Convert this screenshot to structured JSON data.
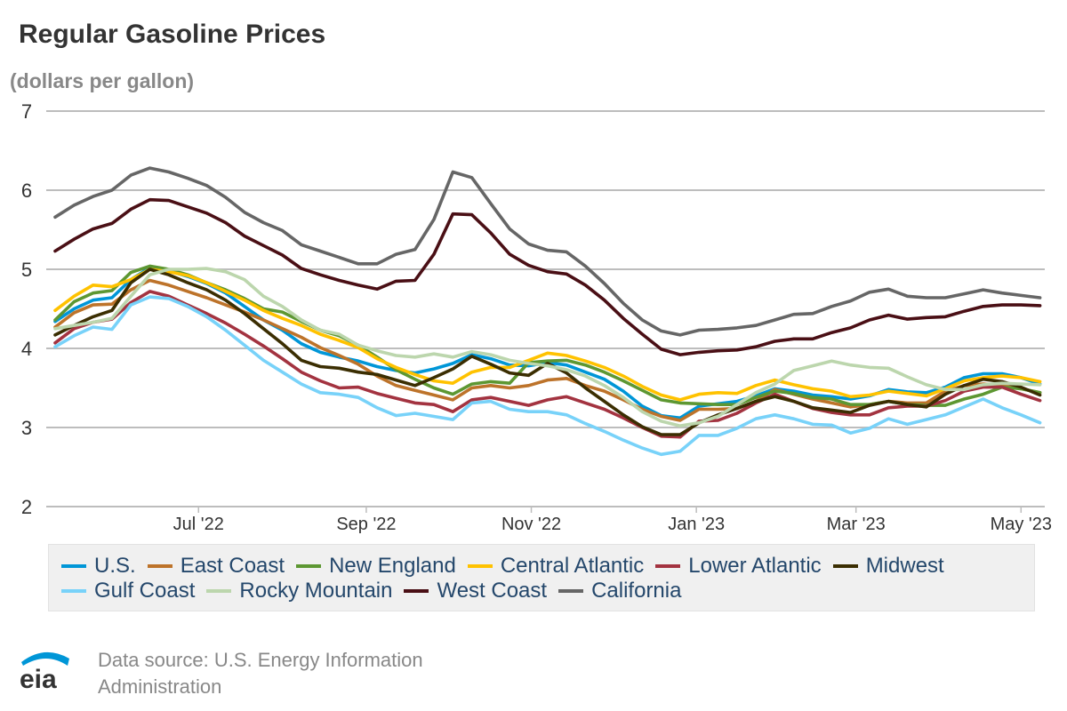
{
  "chart_data": {
    "type": "line",
    "title": "Regular Gasoline Prices",
    "ylabel": "(dollars per gallon)",
    "ylim": [
      2,
      7
    ],
    "yticks": [
      "2",
      "3",
      "4",
      "5",
      "6",
      "7"
    ],
    "grid": true,
    "legend_position": "bottom",
    "xticks": [
      {
        "label": "Jul '22",
        "date": "2022-07-01"
      },
      {
        "label": "Sep '22",
        "date": "2022-09-01"
      },
      {
        "label": "Nov '22",
        "date": "2022-11-01"
      },
      {
        "label": "Jan '23",
        "date": "2023-01-01"
      },
      {
        "label": "Mar '23",
        "date": "2023-03-01"
      },
      {
        "label": "May '23",
        "date": "2023-05-01"
      }
    ],
    "x": [
      "2022-05-09",
      "2022-05-16",
      "2022-05-23",
      "2022-05-30",
      "2022-06-06",
      "2022-06-13",
      "2022-06-20",
      "2022-06-27",
      "2022-07-04",
      "2022-07-11",
      "2022-07-18",
      "2022-07-25",
      "2022-08-01",
      "2022-08-08",
      "2022-08-15",
      "2022-08-22",
      "2022-08-29",
      "2022-09-05",
      "2022-09-12",
      "2022-09-19",
      "2022-09-26",
      "2022-10-03",
      "2022-10-10",
      "2022-10-17",
      "2022-10-24",
      "2022-10-31",
      "2022-11-07",
      "2022-11-14",
      "2022-11-21",
      "2022-11-28",
      "2022-12-05",
      "2022-12-12",
      "2022-12-19",
      "2022-12-26",
      "2023-01-02",
      "2023-01-09",
      "2023-01-16",
      "2023-01-23",
      "2023-01-30",
      "2023-02-06",
      "2023-02-13",
      "2023-02-20",
      "2023-02-27",
      "2023-03-06",
      "2023-03-13",
      "2023-03-20",
      "2023-03-27",
      "2023-04-03",
      "2023-04-10",
      "2023-04-17",
      "2023-04-24",
      "2023-05-01",
      "2023-05-08"
    ],
    "series": [
      {
        "name": "U.S.",
        "color": "#0096d7",
        "values": [
          4.34,
          4.5,
          4.61,
          4.64,
          4.87,
          5.02,
          4.98,
          4.91,
          4.82,
          4.7,
          4.53,
          4.36,
          4.23,
          4.06,
          3.95,
          3.89,
          3.84,
          3.77,
          3.72,
          3.69,
          3.74,
          3.81,
          3.92,
          3.87,
          3.79,
          3.78,
          3.82,
          3.79,
          3.7,
          3.61,
          3.46,
          3.27,
          3.15,
          3.12,
          3.27,
          3.3,
          3.33,
          3.4,
          3.49,
          3.46,
          3.41,
          3.39,
          3.36,
          3.4,
          3.48,
          3.45,
          3.44,
          3.51,
          3.63,
          3.68,
          3.68,
          3.63,
          3.55
        ]
      },
      {
        "name": "East Coast",
        "color": "#bd732a",
        "values": [
          4.27,
          4.45,
          4.55,
          4.56,
          4.74,
          4.86,
          4.8,
          4.72,
          4.64,
          4.55,
          4.46,
          4.36,
          4.25,
          4.14,
          4.01,
          3.91,
          3.8,
          3.65,
          3.53,
          3.47,
          3.41,
          3.35,
          3.5,
          3.53,
          3.5,
          3.53,
          3.6,
          3.62,
          3.53,
          3.46,
          3.35,
          3.23,
          3.14,
          3.09,
          3.23,
          3.23,
          3.24,
          3.33,
          3.48,
          3.42,
          3.36,
          3.31,
          3.26,
          3.29,
          3.33,
          3.31,
          3.31,
          3.46,
          3.53,
          3.55,
          3.53,
          3.49,
          3.44
        ]
      },
      {
        "name": "New England",
        "color": "#5d9732",
        "values": [
          4.36,
          4.59,
          4.7,
          4.73,
          4.96,
          5.04,
          5.0,
          4.93,
          4.83,
          4.74,
          4.63,
          4.5,
          4.46,
          4.34,
          4.23,
          4.16,
          4.04,
          3.89,
          3.73,
          3.61,
          3.5,
          3.42,
          3.55,
          3.58,
          3.56,
          3.82,
          3.84,
          3.85,
          3.79,
          3.7,
          3.59,
          3.47,
          3.35,
          3.31,
          3.3,
          3.29,
          3.29,
          3.38,
          3.46,
          3.43,
          3.38,
          3.36,
          3.29,
          3.29,
          3.33,
          3.29,
          3.28,
          3.28,
          3.36,
          3.42,
          3.51,
          3.49,
          3.44
        ]
      },
      {
        "name": "Central Atlantic",
        "color": "#ffc200",
        "values": [
          4.48,
          4.66,
          4.8,
          4.78,
          4.87,
          5.0,
          4.97,
          4.92,
          4.83,
          4.72,
          4.61,
          4.48,
          4.38,
          4.29,
          4.18,
          4.1,
          4.01,
          3.87,
          3.76,
          3.67,
          3.59,
          3.56,
          3.7,
          3.76,
          3.76,
          3.85,
          3.94,
          3.91,
          3.84,
          3.76,
          3.65,
          3.52,
          3.41,
          3.35,
          3.42,
          3.44,
          3.43,
          3.53,
          3.6,
          3.54,
          3.49,
          3.46,
          3.39,
          3.41,
          3.46,
          3.43,
          3.4,
          3.49,
          3.59,
          3.63,
          3.65,
          3.63,
          3.58
        ]
      },
      {
        "name": "Lower Atlantic",
        "color": "#a33340",
        "values": [
          4.07,
          4.25,
          4.33,
          4.37,
          4.58,
          4.72,
          4.66,
          4.55,
          4.44,
          4.32,
          4.18,
          4.03,
          3.87,
          3.7,
          3.59,
          3.5,
          3.51,
          3.43,
          3.37,
          3.31,
          3.29,
          3.2,
          3.35,
          3.38,
          3.33,
          3.28,
          3.35,
          3.39,
          3.31,
          3.23,
          3.12,
          3.0,
          2.89,
          2.88,
          3.08,
          3.09,
          3.18,
          3.31,
          3.42,
          3.33,
          3.24,
          3.19,
          3.16,
          3.16,
          3.25,
          3.27,
          3.27,
          3.34,
          3.46,
          3.51,
          3.51,
          3.42,
          3.34
        ]
      },
      {
        "name": "Midwest",
        "color": "#3b2e02",
        "values": [
          4.17,
          4.29,
          4.4,
          4.48,
          4.83,
          5.0,
          4.93,
          4.83,
          4.74,
          4.61,
          4.44,
          4.25,
          4.06,
          3.85,
          3.77,
          3.75,
          3.7,
          3.67,
          3.6,
          3.53,
          3.63,
          3.74,
          3.9,
          3.8,
          3.69,
          3.66,
          3.81,
          3.69,
          3.5,
          3.33,
          3.16,
          3.01,
          2.91,
          2.91,
          3.06,
          3.16,
          3.24,
          3.33,
          3.39,
          3.33,
          3.25,
          3.22,
          3.19,
          3.28,
          3.33,
          3.29,
          3.26,
          3.42,
          3.53,
          3.61,
          3.58,
          3.51,
          3.41
        ]
      },
      {
        "name": "Gulf Coast",
        "color": "#78d2f9",
        "values": [
          4.02,
          4.16,
          4.27,
          4.24,
          4.55,
          4.65,
          4.63,
          4.53,
          4.4,
          4.23,
          4.04,
          3.85,
          3.7,
          3.55,
          3.44,
          3.42,
          3.38,
          3.25,
          3.15,
          3.18,
          3.14,
          3.1,
          3.31,
          3.33,
          3.23,
          3.2,
          3.2,
          3.16,
          3.05,
          2.95,
          2.84,
          2.74,
          2.66,
          2.7,
          2.9,
          2.9,
          2.99,
          3.11,
          3.16,
          3.11,
          3.04,
          3.03,
          2.93,
          2.99,
          3.11,
          3.04,
          3.1,
          3.16,
          3.26,
          3.36,
          3.25,
          3.16,
          3.06
        ]
      },
      {
        "name": "Rocky Mountain",
        "color": "#bcd6ad",
        "values": [
          4.25,
          4.29,
          4.33,
          4.38,
          4.66,
          4.93,
          5.0,
          5.0,
          5.01,
          4.97,
          4.87,
          4.66,
          4.53,
          4.36,
          4.23,
          4.18,
          4.04,
          3.97,
          3.91,
          3.89,
          3.93,
          3.89,
          3.96,
          3.92,
          3.85,
          3.81,
          3.78,
          3.73,
          3.65,
          3.53,
          3.38,
          3.2,
          3.08,
          3.02,
          3.06,
          3.14,
          3.29,
          3.44,
          3.55,
          3.72,
          3.78,
          3.84,
          3.79,
          3.76,
          3.75,
          3.64,
          3.54,
          3.48,
          3.48,
          3.54,
          3.56,
          3.55,
          3.54
        ]
      },
      {
        "name": "West Coast",
        "color": "#4a0f15",
        "values": [
          5.23,
          5.38,
          5.51,
          5.58,
          5.76,
          5.88,
          5.87,
          5.79,
          5.71,
          5.59,
          5.42,
          5.3,
          5.18,
          5.01,
          4.93,
          4.86,
          4.8,
          4.75,
          4.85,
          4.86,
          5.19,
          5.7,
          5.69,
          5.46,
          5.19,
          5.05,
          4.97,
          4.94,
          4.8,
          4.61,
          4.38,
          4.18,
          3.99,
          3.92,
          3.95,
          3.97,
          3.98,
          4.02,
          4.09,
          4.12,
          4.12,
          4.2,
          4.26,
          4.36,
          4.42,
          4.37,
          4.39,
          4.4,
          4.47,
          4.53,
          4.55,
          4.55,
          4.54
        ]
      },
      {
        "name": "California",
        "color": "#666666",
        "values": [
          5.66,
          5.81,
          5.92,
          6.0,
          6.19,
          6.28,
          6.23,
          6.15,
          6.06,
          5.91,
          5.72,
          5.59,
          5.49,
          5.31,
          5.23,
          5.15,
          5.07,
          5.07,
          5.19,
          5.25,
          5.63,
          6.23,
          6.16,
          5.83,
          5.51,
          5.32,
          5.24,
          5.22,
          5.04,
          4.82,
          4.57,
          4.36,
          4.22,
          4.17,
          4.23,
          4.24,
          4.26,
          4.29,
          4.36,
          4.43,
          4.44,
          4.53,
          4.6,
          4.71,
          4.75,
          4.66,
          4.64,
          4.64,
          4.69,
          4.74,
          4.7,
          4.67,
          4.64
        ]
      }
    ]
  },
  "footer": {
    "source_line1": "Data source: U.S. Energy Information",
    "source_line2": "Administration",
    "logo_text": "eia",
    "logo_color": "#0096d7"
  }
}
